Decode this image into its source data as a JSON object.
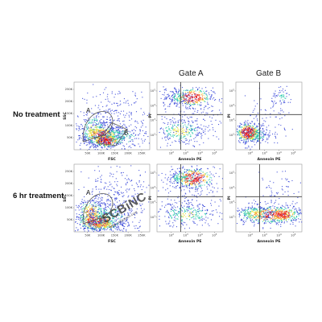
{
  "column_titles": [
    "Gate A",
    "Gate B"
  ],
  "row_labels": [
    "No treatment",
    "6 hr treatment"
  ],
  "watermark": {
    "text": "SCBiNC",
    "sub": "www.scbiotech.com"
  },
  "colors": {
    "density_low": "#2b3bd6",
    "density_mid": "#22c7a8",
    "density_high_1": "#e8e23a",
    "density_high_2": "#ff7a1a",
    "density_peak": "#e31a1c",
    "gate_line": "#555555",
    "quadrant_line": "#3a3a3a"
  },
  "chart_data": [
    {
      "type": "scatter",
      "name": "r0-fsc-ssc",
      "xlabel": "FSC",
      "ylabel": "SSC",
      "xticks": [
        "50K",
        "100K",
        "150K",
        "200K",
        "250K"
      ],
      "yticks": [
        "50K",
        "100K",
        "150K",
        "200K",
        "250K"
      ],
      "gates": [
        "A",
        "B"
      ],
      "grid": false
    },
    {
      "type": "scatter",
      "name": "r0-gateA",
      "xlabel": "Annexin PE",
      "ylabel": "PI",
      "xticks": [
        "10^2",
        "10^3",
        "10^4",
        "10^5"
      ],
      "yticks": [
        "10^2",
        "10^3",
        "10^4",
        "10^5"
      ],
      "quadrants": true
    },
    {
      "type": "scatter",
      "name": "r0-gateB",
      "xlabel": "Annexin PE",
      "ylabel": "PI",
      "xticks": [
        "10^2",
        "10^3",
        "10^4",
        "10^5"
      ],
      "yticks": [
        "10^2",
        "10^3",
        "10^4",
        "10^5"
      ],
      "quadrants": true
    },
    {
      "type": "scatter",
      "name": "r1-fsc-ssc",
      "xlabel": "FSC",
      "ylabel": "SSC",
      "xticks": [
        "50K",
        "100K",
        "150K",
        "200K",
        "250K"
      ],
      "yticks": [
        "50K",
        "100K",
        "150K",
        "200K",
        "250K"
      ],
      "gates": [
        "A"
      ],
      "grid": false
    },
    {
      "type": "scatter",
      "name": "r1-gateA",
      "xlabel": "Annexin PE",
      "ylabel": "PI",
      "xticks": [
        "10^2",
        "10^3",
        "10^4",
        "10^5"
      ],
      "yticks": [
        "10^2",
        "10^3",
        "10^4",
        "10^5"
      ],
      "quadrants": true
    },
    {
      "type": "scatter",
      "name": "r1-gateB",
      "xlabel": "Annexin PE",
      "ylabel": "PI",
      "xticks": [
        "10^2",
        "10^3",
        "10^4",
        "10^5"
      ],
      "yticks": [
        "10^2",
        "10^3",
        "10^4",
        "10^5"
      ],
      "quadrants": true
    }
  ]
}
